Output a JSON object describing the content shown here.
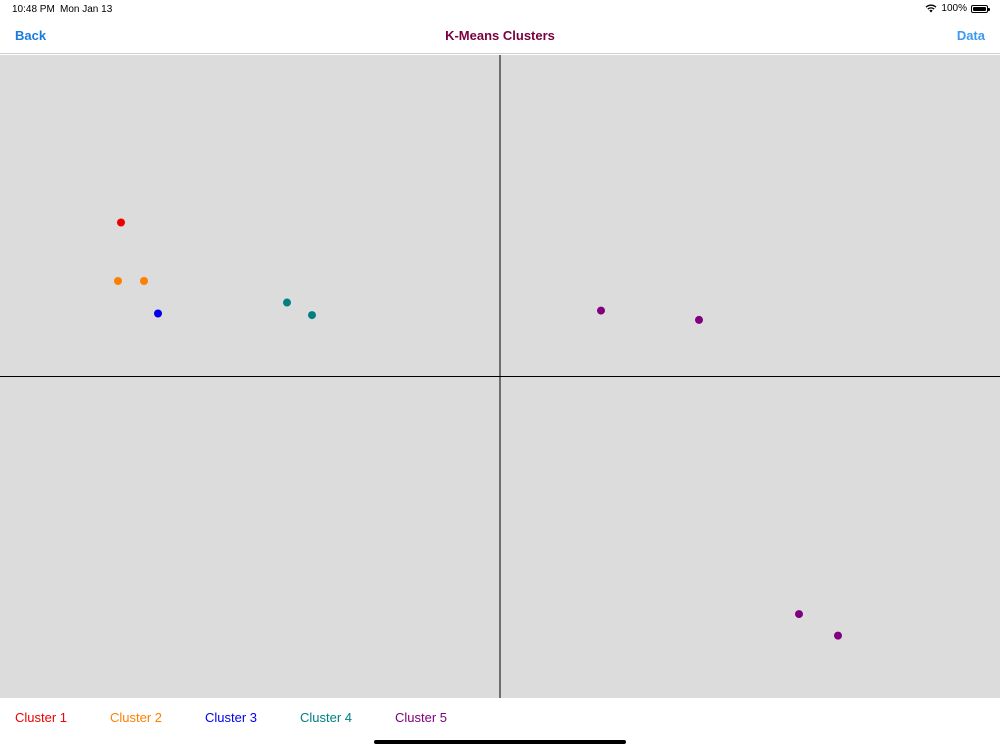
{
  "status_bar": {
    "time": "10:48 PM",
    "date": "Mon Jan 13",
    "battery": "100%",
    "battery_level": 1.0
  },
  "nav": {
    "back_label": "Back",
    "title": "K-Means Clusters",
    "data_label": "Data"
  },
  "colors": {
    "background": "#dcdcdc",
    "axis": "#000000",
    "nav_title": "#7a0040",
    "nav_button": "#1a7ae0"
  },
  "chart_data": {
    "type": "scatter",
    "title": "",
    "xlabel": "",
    "ylabel": "",
    "xlim": [
      -1,
      1
    ],
    "ylim": [
      -1,
      1
    ],
    "grid": false,
    "legend_position": "bottom-left",
    "series": [
      {
        "name": "Cluster 1",
        "color": "#ee0000",
        "points": [
          [
            -0.758,
            0.479
          ]
        ]
      },
      {
        "name": "Cluster 2",
        "color": "#ff8000",
        "points": [
          [
            -0.764,
            0.297
          ],
          [
            -0.712,
            0.297
          ]
        ]
      },
      {
        "name": "Cluster 3",
        "color": "#0000ee",
        "points": [
          [
            -0.684,
            0.196
          ]
        ]
      },
      {
        "name": "Cluster 4",
        "color": "#008080",
        "points": [
          [
            -0.426,
            0.23
          ],
          [
            -0.376,
            0.191
          ]
        ]
      },
      {
        "name": "Cluster 5",
        "color": "#800080",
        "points": [
          [
            0.202,
            0.205
          ],
          [
            0.398,
            0.176
          ],
          [
            0.598,
            -0.739
          ],
          [
            0.676,
            -0.806
          ]
        ]
      }
    ]
  }
}
